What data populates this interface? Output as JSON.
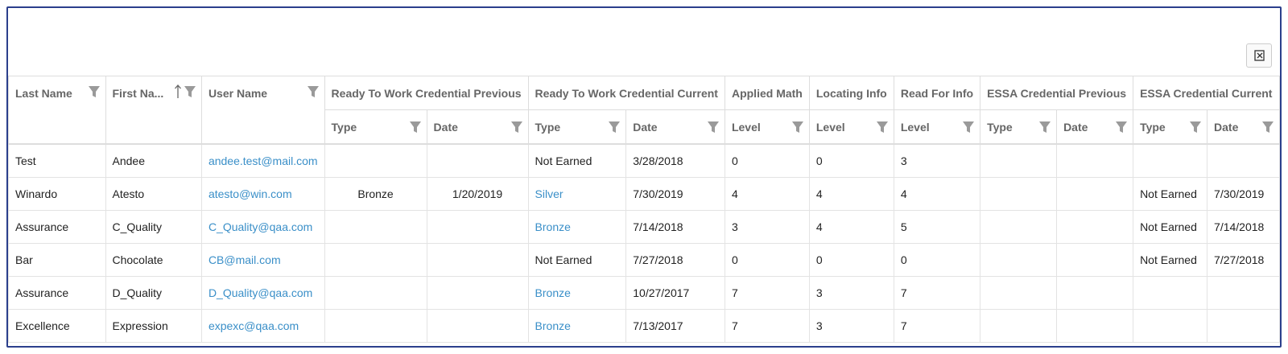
{
  "table": {
    "headers": [
      {
        "label": "Last Name"
      },
      {
        "label": "First Na...",
        "sorted": "ascending"
      },
      {
        "label": "User Name"
      },
      {
        "label": "Ready To Work Credential Previous",
        "sub": [
          "Type",
          "Date"
        ]
      },
      {
        "label": "Ready To Work Credential Current",
        "sub": [
          "Type",
          "Date"
        ]
      },
      {
        "label": "Applied Math",
        "sub": [
          "Level"
        ]
      },
      {
        "label": "Locating Info",
        "sub": [
          "Level"
        ]
      },
      {
        "label": "Read For Info",
        "sub": [
          "Level"
        ]
      },
      {
        "label": "ESSA Credential Previous",
        "sub": [
          "Type",
          "Date"
        ]
      },
      {
        "label": "ESSA Credential Current",
        "sub": [
          "Type",
          "Date"
        ]
      }
    ],
    "rows": [
      [
        "Test",
        "Andee",
        {
          "text": "andee.test@mail.com",
          "link": true
        },
        null,
        null,
        "Not Earned",
        "3/28/2018",
        "0",
        "0",
        "3",
        null,
        null,
        null,
        null
      ],
      [
        "Winardo",
        "Atesto",
        {
          "text": "atesto@win.com",
          "link": true
        },
        "Bronze",
        "1/20/2019",
        {
          "text": "Silver",
          "link": true
        },
        "7/30/2019",
        "4",
        "4",
        "4",
        null,
        null,
        "Not Earned",
        "7/30/2019"
      ],
      [
        "Assurance",
        "C_Quality",
        {
          "text": "C_Quality@qaa.com",
          "link": true
        },
        null,
        null,
        {
          "text": "Bronze",
          "link": true
        },
        "7/14/2018",
        "3",
        "4",
        "5",
        null,
        null,
        "Not Earned",
        "7/14/2018"
      ],
      [
        "Bar",
        "Chocolate",
        {
          "text": "CB@mail.com",
          "link": true
        },
        null,
        null,
        "Not Earned",
        "7/27/2018",
        "0",
        "0",
        "0",
        null,
        null,
        "Not Earned",
        "7/27/2018"
      ],
      [
        "Assurance",
        "D_Quality",
        {
          "text": "D_Quality@qaa.com",
          "link": true
        },
        null,
        null,
        {
          "text": "Bronze",
          "link": true
        },
        "10/27/2017",
        "7",
        "3",
        "7",
        null,
        null,
        null,
        null
      ],
      [
        "Excellence",
        "Expression",
        {
          "text": "expexc@qaa.com",
          "link": true
        },
        null,
        null,
        {
          "text": "Bronze",
          "link": true
        },
        "7/13/2017",
        "7",
        "3",
        "7",
        null,
        null,
        null,
        null
      ]
    ]
  }
}
